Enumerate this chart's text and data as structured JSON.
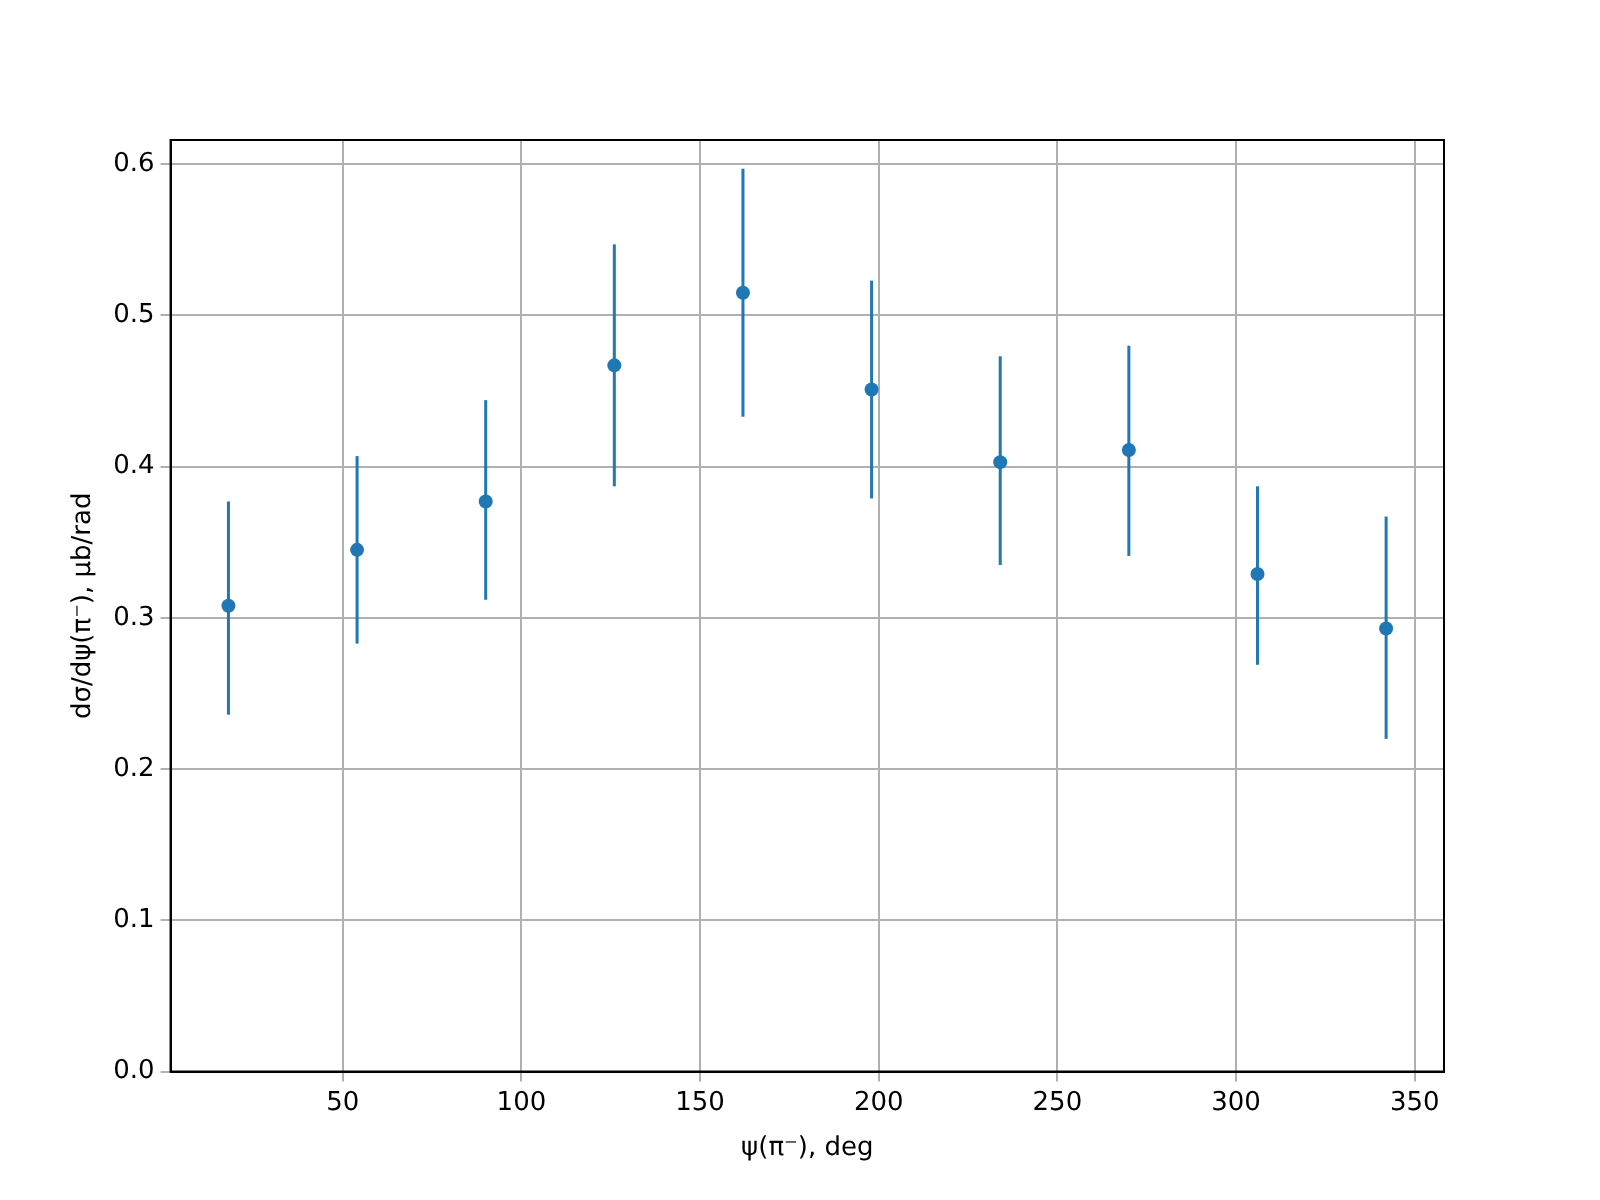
{
  "chart_data": {
    "type": "scatter",
    "xlabel": "ψ(π⁻), deg",
    "ylabel": "dσ/dψ(π⁻), μb/rad",
    "x": [
      18,
      54,
      90,
      126,
      162,
      198,
      234,
      270,
      306,
      342
    ],
    "series": [
      {
        "color": "#1f77b4",
        "values": [
          0.308,
          0.345,
          0.377,
          0.467,
          0.515,
          0.451,
          0.403,
          0.411,
          0.329,
          0.293
        ],
        "errors": [
          [
            0.236,
            0.377
          ],
          [
            0.283,
            0.407
          ],
          [
            0.312,
            0.444
          ],
          [
            0.387,
            0.547
          ],
          [
            0.433,
            0.597
          ],
          [
            0.379,
            0.523
          ],
          [
            0.335,
            0.473
          ],
          [
            0.341,
            0.48
          ],
          [
            0.269,
            0.387
          ],
          [
            0.22,
            0.367
          ]
        ]
      }
    ],
    "xlim": [
      1.8,
      358.2
    ],
    "xticks": [
      50,
      100,
      150,
      200,
      250,
      300,
      350
    ],
    "ylim": [
      0,
      0.616
    ],
    "yticks": [
      {
        "value": 0,
        "label": "0.0"
      },
      0.1,
      0.2,
      0.3,
      0.4,
      0.5,
      0.6
    ],
    "grid": true,
    "marker": "circle",
    "legend": false
  }
}
